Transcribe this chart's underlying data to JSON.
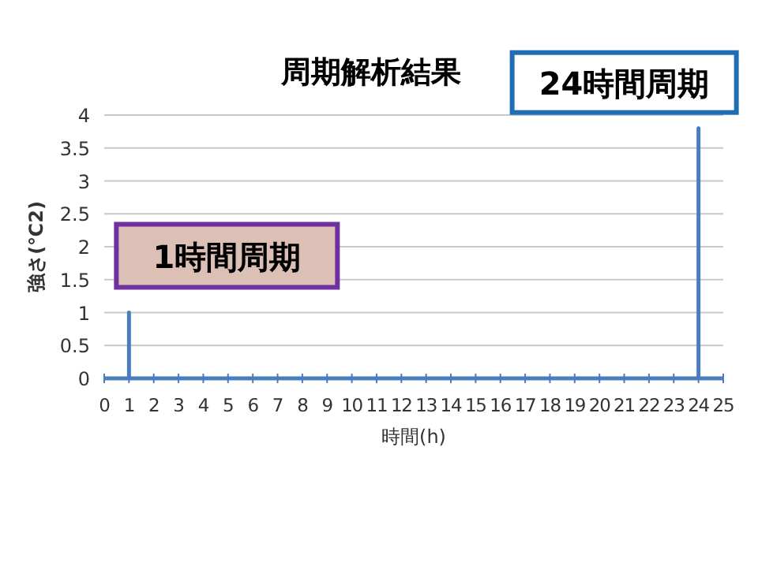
{
  "chart_data": {
    "type": "line",
    "title": "周期解析結果",
    "xlabel": "時間(h)",
    "ylabel": "強さ(℃2)",
    "x": [
      0,
      1,
      1,
      1,
      24,
      24,
      24,
      25
    ],
    "series": [
      {
        "color": "#4a7ebb",
        "values": [
          0,
          0,
          1,
          0,
          0,
          3.8,
          0,
          0
        ]
      }
    ],
    "xlim": [
      0,
      25
    ],
    "xticks": [
      0,
      1,
      2,
      3,
      4,
      5,
      6,
      7,
      8,
      9,
      10,
      11,
      12,
      13,
      14,
      15,
      16,
      17,
      18,
      19,
      20,
      21,
      22,
      23,
      24,
      25
    ],
    "ylim": [
      0,
      4
    ],
    "yticks": [
      0,
      0.5,
      1,
      1.5,
      2,
      2.5,
      3,
      3.5,
      4
    ],
    "grid": "y",
    "marker": "none",
    "line_style": "solid",
    "annotations": [
      {
        "text": "1時間周期",
        "x": 1,
        "y": 1
      },
      {
        "text": "24時間周期",
        "x": 24,
        "y": 3.8
      }
    ]
  }
}
